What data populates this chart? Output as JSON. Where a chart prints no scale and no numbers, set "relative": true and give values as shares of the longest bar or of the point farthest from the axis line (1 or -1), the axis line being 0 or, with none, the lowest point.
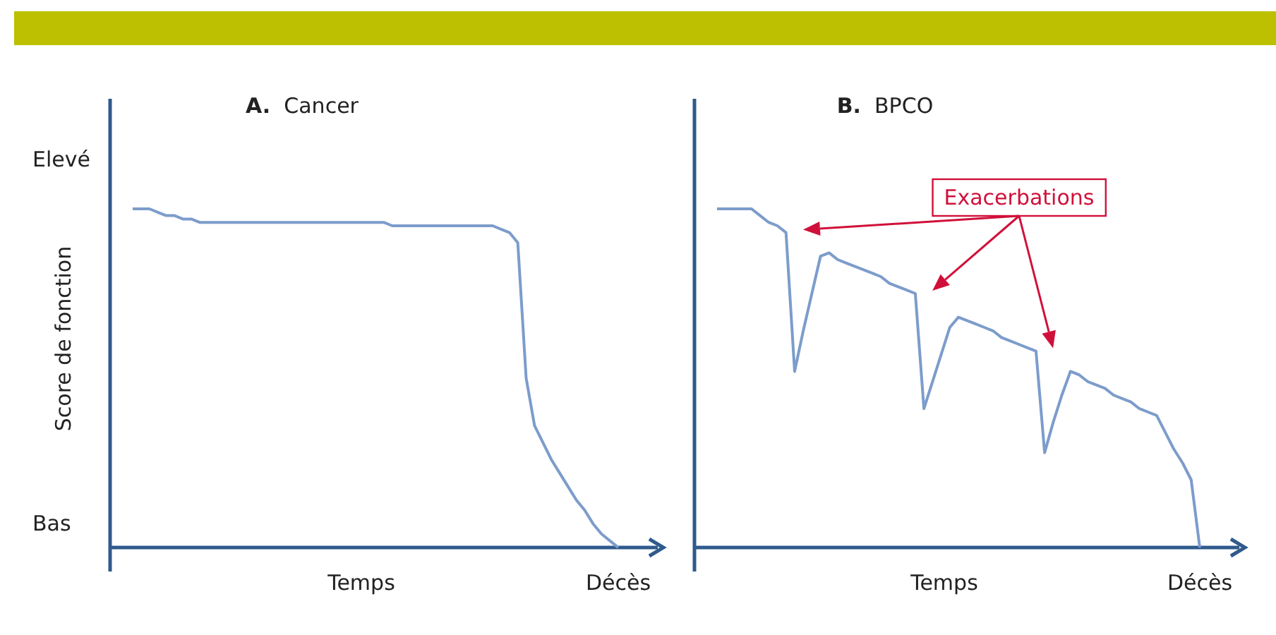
{
  "chart_data": [
    {
      "type": "line",
      "title": "A. Cancer",
      "xlabel": "Temps",
      "ylabel": "Score de fonction",
      "relative": true,
      "annotations": [
        "Elevé",
        "Bas",
        "Décès"
      ],
      "categories": [
        null,
        null,
        null,
        null,
        null,
        null,
        null,
        null,
        null,
        null,
        null,
        null,
        null,
        null,
        null,
        null,
        null,
        null,
        null,
        null,
        null,
        null,
        null,
        null,
        null,
        null,
        null,
        null,
        null,
        null,
        null,
        null,
        null,
        null,
        null,
        null,
        null,
        null,
        null,
        null,
        null,
        null,
        null,
        null,
        null,
        null,
        null,
        null,
        null,
        null,
        null,
        null,
        null,
        null,
        null,
        null,
        null,
        null,
        null
      ],
      "series": [
        {
          "color": "#7c9ccb",
          "values": [
            1.0,
            1.0,
            1.0,
            0.99,
            0.98,
            0.98,
            0.97,
            0.97,
            0.96,
            0.96,
            0.96,
            0.96,
            0.96,
            0.96,
            0.96,
            0.96,
            0.96,
            0.96,
            0.96,
            0.96,
            0.96,
            0.96,
            0.96,
            0.96,
            0.96,
            0.96,
            0.96,
            0.96,
            0.96,
            0.96,
            0.96,
            0.95,
            0.95,
            0.95,
            0.95,
            0.95,
            0.95,
            0.95,
            0.95,
            0.95,
            0.95,
            0.95,
            0.95,
            0.95,
            0.94,
            0.93,
            0.9,
            0.5,
            0.36,
            0.31,
            0.26,
            0.22,
            0.18,
            0.14,
            0.11,
            0.07,
            0.04,
            0.02,
            0.0
          ]
        }
      ]
    },
    {
      "type": "line",
      "title": "B. BPCO",
      "xlabel": "Temps",
      "relative": true,
      "annotations": [
        "Décès",
        "Exacerbations"
      ],
      "categories": [
        null,
        null,
        null,
        null,
        null,
        null,
        null,
        null,
        null,
        null,
        null,
        null,
        null,
        null,
        null,
        null,
        null,
        null,
        null,
        null,
        null,
        null,
        null,
        null,
        null,
        null,
        null,
        null,
        null,
        null,
        null,
        null,
        null,
        null,
        null,
        null,
        null,
        null,
        null,
        null,
        null,
        null,
        null,
        null,
        null,
        null,
        null,
        null,
        null,
        null,
        null,
        null,
        null,
        null,
        null,
        null,
        null
      ],
      "series": [
        {
          "color": "#7c9ccb",
          "values": [
            1.0,
            1.0,
            1.0,
            1.0,
            1.0,
            0.98,
            0.96,
            0.95,
            0.93,
            0.52,
            0.64,
            0.75,
            0.86,
            0.87,
            0.85,
            0.84,
            0.83,
            0.82,
            0.81,
            0.8,
            0.78,
            0.77,
            0.76,
            0.75,
            0.41,
            0.49,
            0.57,
            0.65,
            0.68,
            0.67,
            0.66,
            0.65,
            0.64,
            0.62,
            0.61,
            0.6,
            0.59,
            0.58,
            0.28,
            0.37,
            0.45,
            0.52,
            0.51,
            0.49,
            0.48,
            0.47,
            0.45,
            0.44,
            0.43,
            0.41,
            0.4,
            0.39,
            0.34,
            0.29,
            0.25,
            0.2,
            0.0
          ]
        }
      ]
    }
  ]
}
